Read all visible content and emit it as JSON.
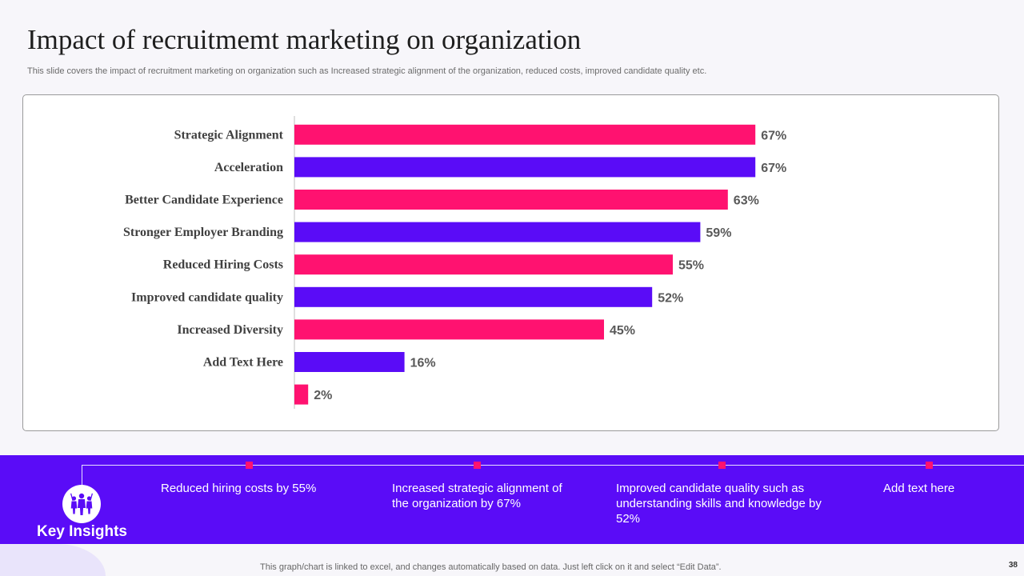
{
  "header": {
    "title": "Impact of recruitmemt marketing on organization",
    "subtitle": "This slide covers the impact of recruitment marketing on organization such as Increased strategic alignment of the organization, reduced costs, improved candidate quality etc."
  },
  "colors": {
    "pink": "#ff1270",
    "purple": "#5a0cf7"
  },
  "chart_data": {
    "type": "bar",
    "orientation": "horizontal",
    "title": "",
    "xlabel": "",
    "ylabel": "",
    "xlim": [
      0,
      100
    ],
    "grid": false,
    "categories": [
      "Strategic Alignment",
      "Acceleration",
      "Better Candidate Experience",
      "Stronger Employer Branding",
      "Reduced Hiring Costs",
      "Improved candidate quality",
      "Increased Diversity",
      "Add Text Here",
      ""
    ],
    "values": [
      67,
      67,
      63,
      59,
      55,
      52,
      45,
      16,
      2
    ],
    "value_labels": [
      "67%",
      "67%",
      "63%",
      "59%",
      "55%",
      "52%",
      "45%",
      "16%",
      "2%"
    ],
    "bar_colors": [
      "#ff1270",
      "#5a0cf7",
      "#ff1270",
      "#5a0cf7",
      "#ff1270",
      "#5a0cf7",
      "#ff1270",
      "#5a0cf7",
      "#ff1270"
    ]
  },
  "insights": {
    "heading": "Key Insights",
    "icon": "people-group-icon",
    "items": [
      "Reduced hiring costs by 55%",
      "Increased strategic alignment of the organization by 67%",
      "Improved candidate quality such as understanding skills and knowledge by 52%",
      "Add text here"
    ]
  },
  "footer": {
    "note": "This graph/chart is linked to excel,  and changes automatically based on data. Just left click on it and select “Edit Data”.",
    "page_number": "38"
  }
}
